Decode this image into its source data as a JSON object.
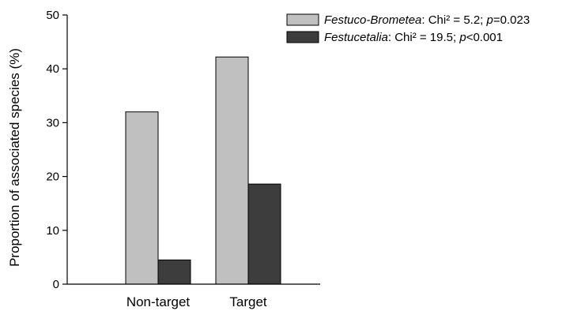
{
  "chart_data": {
    "type": "bar",
    "categories": [
      "Non-target",
      "Target"
    ],
    "series": [
      {
        "name": "Festuco-Brometea",
        "legend_italic": "Festuco-Brometea",
        "legend_stat": ": Chi² = 5.2; ",
        "legend_p": "p",
        "legend_pval": "=0.023",
        "color": "#c0c0c0",
        "values": [
          32.0,
          42.2
        ]
      },
      {
        "name": "Festucetalia",
        "legend_italic": "Festucetalia",
        "legend_stat": ": Chi² = 19.5; ",
        "legend_p": "p",
        "legend_pval": "<0.001",
        "color": "#3d3d3d",
        "values": [
          4.5,
          18.6
        ]
      }
    ],
    "title": "",
    "xlabel": "",
    "ylabel": "Proportion of associated species (%)",
    "ylim": [
      0,
      50
    ],
    "yticks": [
      "0",
      "10",
      "20",
      "30",
      "40",
      "50"
    ],
    "grid": false,
    "legend_position": "top-right"
  }
}
